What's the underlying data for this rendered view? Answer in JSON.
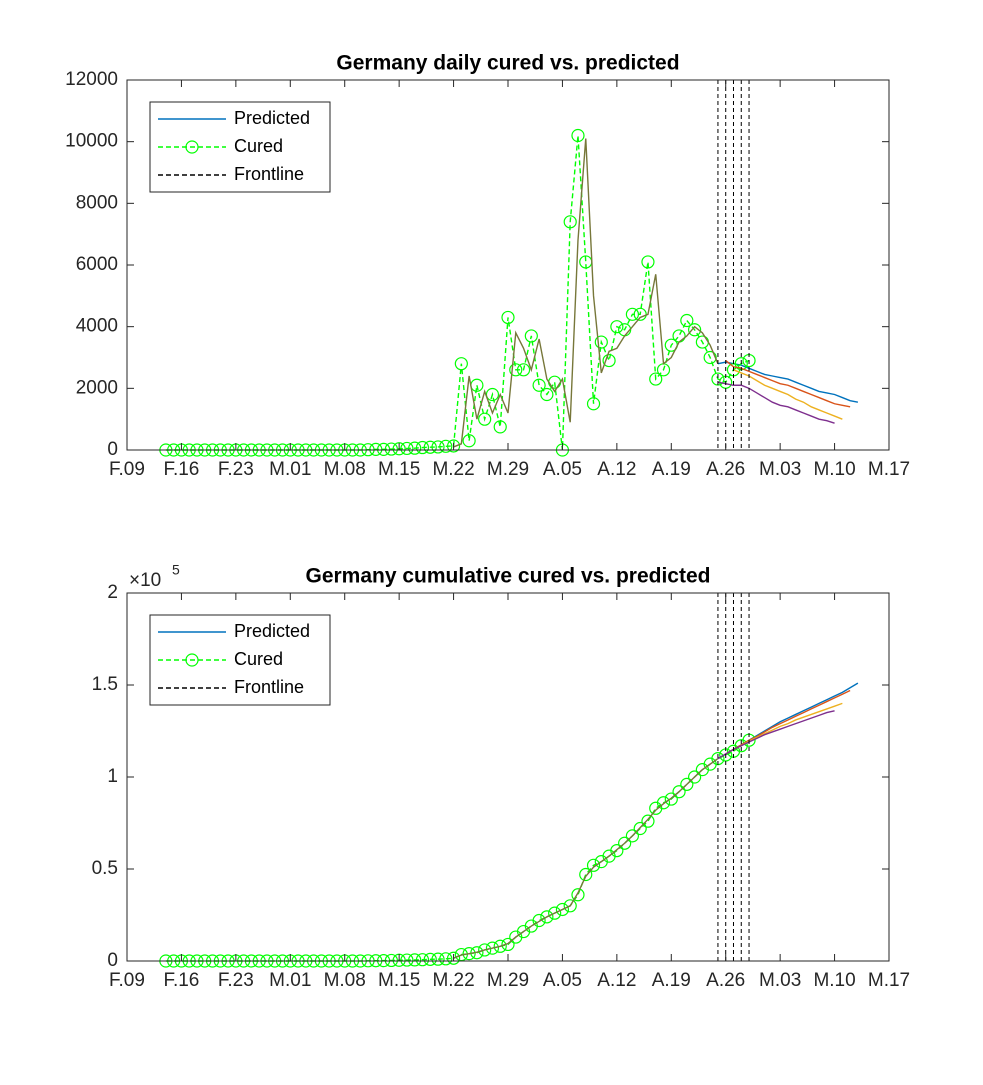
{
  "chart_data": [
    {
      "type": "line",
      "title": "Germany daily cured vs. predicted",
      "xlim": [
        0,
        98
      ],
      "xticks": [
        {
          "value": 0,
          "label": "F.09"
        },
        {
          "value": 7,
          "label": "F.16"
        },
        {
          "value": 14,
          "label": "F.23"
        },
        {
          "value": 21,
          "label": "M.01"
        },
        {
          "value": 28,
          "label": "M.08"
        },
        {
          "value": 35,
          "label": "M.15"
        },
        {
          "value": 42,
          "label": "M.22"
        },
        {
          "value": 49,
          "label": "M.29"
        },
        {
          "value": 56,
          "label": "A.05"
        },
        {
          "value": 63,
          "label": "A.12"
        },
        {
          "value": 70,
          "label": "A.19"
        },
        {
          "value": 77,
          "label": "A.26"
        },
        {
          "value": 84,
          "label": "M.03"
        },
        {
          "value": 91,
          "label": "M.10"
        },
        {
          "value": 98,
          "label": "M.17"
        }
      ],
      "ylim": [
        0,
        12000
      ],
      "yticks": [
        0,
        2000,
        4000,
        6000,
        8000,
        10000,
        12000
      ],
      "legend": "upper left",
      "series": [
        {
          "name": "Predicted",
          "color": "#0072bd",
          "linestyle": "solid",
          "x": [
            76,
            77,
            78,
            79,
            80,
            81,
            82,
            83,
            84,
            85,
            86,
            87,
            88,
            89,
            90,
            91,
            92,
            93,
            94
          ],
          "values": [
            2800,
            2850,
            2800,
            2750,
            2650,
            2550,
            2450,
            2400,
            2350,
            2300,
            2200,
            2100,
            2000,
            1900,
            1850,
            1800,
            1700,
            1600,
            1550
          ]
        },
        {
          "name": "Cured",
          "color": "#00ff00",
          "linestyle": "dashed",
          "marker": "circle",
          "x": [
            5,
            6,
            7,
            8,
            9,
            10,
            11,
            12,
            13,
            14,
            15,
            16,
            17,
            18,
            19,
            20,
            21,
            22,
            23,
            24,
            25,
            26,
            27,
            28,
            29,
            30,
            31,
            32,
            33,
            34,
            35,
            36,
            37,
            38,
            39,
            40,
            41,
            42,
            43,
            44,
            45,
            46,
            47,
            48,
            49,
            50,
            51,
            52,
            53,
            54,
            55,
            56,
            57,
            58,
            59,
            60,
            61,
            62,
            63,
            64,
            65,
            66,
            67,
            68,
            69,
            70,
            71,
            72,
            73,
            74,
            75,
            76,
            77,
            78,
            79,
            80
          ],
          "values": [
            0,
            0,
            0,
            0,
            0,
            0,
            0,
            0,
            0,
            0,
            0,
            0,
            0,
            0,
            0,
            0,
            0,
            0,
            0,
            0,
            0,
            0,
            0,
            0,
            0,
            0,
            10,
            20,
            20,
            30,
            40,
            50,
            60,
            80,
            90,
            100,
            120,
            130,
            2800,
            300,
            2100,
            1000,
            1800,
            750,
            4300,
            2600,
            2600,
            3700,
            2100,
            1800,
            2200,
            0,
            7400,
            10200,
            6100,
            1500,
            3500,
            2900,
            4000,
            3900,
            4400,
            4400,
            6100,
            2300,
            2600,
            3400,
            3700,
            4200,
            3900,
            3500,
            3000,
            2300,
            2200,
            2600,
            2800,
            2900
          ]
        },
        {
          "color": "#77773a",
          "linestyle": "solid",
          "x": [
            42,
            43,
            44,
            45,
            46,
            47,
            48,
            49,
            50,
            51,
            52,
            53,
            54,
            55,
            56,
            57,
            58,
            59,
            60,
            61,
            62,
            63,
            64,
            65,
            66,
            67,
            68,
            69,
            70,
            71,
            72,
            73,
            74,
            75,
            76
          ],
          "values": [
            100,
            200,
            2400,
            1000,
            1900,
            1200,
            1800,
            1200,
            3800,
            3300,
            2600,
            3600,
            2300,
            1900,
            2300,
            900,
            6800,
            10100,
            5000,
            2500,
            3200,
            3300,
            3700,
            4000,
            4300,
            4400,
            5700,
            2800,
            3000,
            3500,
            3700,
            4000,
            3800,
            3400,
            2800
          ]
        },
        {
          "color": "#d95319",
          "linestyle": "solid",
          "x": [
            77,
            78,
            79,
            80,
            81,
            82,
            83,
            84,
            85,
            86,
            87,
            88,
            89,
            90,
            91,
            92,
            93
          ],
          "values": [
            2900,
            2700,
            2650,
            2550,
            2450,
            2350,
            2250,
            2150,
            2100,
            2000,
            1900,
            1800,
            1700,
            1600,
            1500,
            1450,
            1400
          ]
        },
        {
          "color": "#edb120",
          "linestyle": "solid",
          "x": [
            78,
            79,
            80,
            81,
            82,
            83,
            84,
            85,
            86,
            87,
            88,
            89,
            90,
            91,
            92
          ],
          "values": [
            2600,
            2500,
            2400,
            2250,
            2100,
            2000,
            1900,
            1800,
            1650,
            1550,
            1400,
            1300,
            1200,
            1100,
            1000
          ]
        },
        {
          "color": "#7e2f8e",
          "linestyle": "solid",
          "x": [
            76,
            77,
            78,
            79,
            80,
            81,
            82,
            83,
            84,
            85,
            86,
            87,
            88,
            89,
            90,
            91
          ],
          "values": [
            2200,
            2150,
            2100,
            2100,
            2000,
            1850,
            1700,
            1550,
            1450,
            1400,
            1300,
            1200,
            1100,
            1000,
            950,
            870
          ]
        }
      ],
      "frontline": {
        "name": "Frontline",
        "color": "#000000",
        "linestyle": "dashed",
        "x": [
          76,
          77,
          78,
          79,
          80
        ]
      }
    },
    {
      "type": "line",
      "title": "Germany cumulative cured vs. predicted",
      "xlim": [
        0,
        98
      ],
      "xticks": [
        {
          "value": 0,
          "label": "F.09"
        },
        {
          "value": 7,
          "label": "F.16"
        },
        {
          "value": 14,
          "label": "F.23"
        },
        {
          "value": 21,
          "label": "M.01"
        },
        {
          "value": 28,
          "label": "M.08"
        },
        {
          "value": 35,
          "label": "M.15"
        },
        {
          "value": 42,
          "label": "M.22"
        },
        {
          "value": 49,
          "label": "M.29"
        },
        {
          "value": 56,
          "label": "A.05"
        },
        {
          "value": 63,
          "label": "A.12"
        },
        {
          "value": 70,
          "label": "A.19"
        },
        {
          "value": 77,
          "label": "A.26"
        },
        {
          "value": 84,
          "label": "M.03"
        },
        {
          "value": 91,
          "label": "M.10"
        },
        {
          "value": 98,
          "label": "M.17"
        }
      ],
      "ylim": [
        0,
        200000
      ],
      "yticks": [
        0,
        {
          "value": 50000,
          "label": "0.5"
        },
        {
          "value": 100000,
          "label": "1"
        },
        {
          "value": 150000,
          "label": "1.5"
        },
        {
          "value": 200000,
          "label": "2"
        }
      ],
      "yexponent": {
        "base": "×10",
        "power": "5"
      },
      "legend": "upper left",
      "series": [
        {
          "name": "Predicted",
          "color": "#0072bd",
          "linestyle": "solid",
          "x": [
            76,
            77,
            78,
            79,
            80,
            81,
            82,
            83,
            84,
            85,
            86,
            87,
            88,
            89,
            90,
            91,
            92,
            93,
            94
          ],
          "values": [
            110000,
            112500,
            115000,
            117500,
            120000,
            122500,
            125000,
            127500,
            130000,
            132000,
            134000,
            136000,
            138000,
            140000,
            142000,
            144000,
            146000,
            148500,
            151000
          ]
        },
        {
          "name": "Cured",
          "color": "#00ff00",
          "linestyle": "dashed",
          "marker": "circle",
          "x": [
            5,
            6,
            7,
            8,
            9,
            10,
            11,
            12,
            13,
            14,
            15,
            16,
            17,
            18,
            19,
            20,
            21,
            22,
            23,
            24,
            25,
            26,
            27,
            28,
            29,
            30,
            31,
            32,
            33,
            34,
            35,
            36,
            37,
            38,
            39,
            40,
            41,
            42,
            43,
            44,
            45,
            46,
            47,
            48,
            49,
            50,
            51,
            52,
            53,
            54,
            55,
            56,
            57,
            58,
            59,
            60,
            61,
            62,
            63,
            64,
            65,
            66,
            67,
            68,
            69,
            70,
            71,
            72,
            73,
            74,
            75,
            76,
            77,
            78,
            79,
            80
          ],
          "values": [
            0,
            0,
            0,
            0,
            0,
            0,
            0,
            0,
            0,
            0,
            0,
            0,
            0,
            0,
            0,
            0,
            0,
            0,
            0,
            0,
            0,
            0,
            0,
            0,
            0,
            0,
            100,
            150,
            200,
            300,
            400,
            500,
            600,
            700,
            900,
            1000,
            1200,
            1500,
            3500,
            4000,
            4500,
            6000,
            7000,
            8000,
            9000,
            13000,
            16000,
            19000,
            22000,
            24000,
            26000,
            28000,
            30000,
            36000,
            47000,
            52000,
            54000,
            57000,
            60000,
            64000,
            68000,
            72000,
            76000,
            83000,
            86000,
            88000,
            92000,
            96000,
            100000,
            104000,
            107000,
            110000,
            112000,
            114000,
            117000,
            120000
          ]
        },
        {
          "color": "#77773a",
          "linestyle": "solid",
          "x": [
            42,
            43,
            44,
            45,
            46,
            47,
            48,
            49,
            50,
            51,
            52,
            53,
            54,
            55,
            56,
            57,
            58,
            59,
            60,
            61,
            62,
            63,
            64,
            65,
            66,
            67,
            68,
            69,
            70,
            71,
            72,
            73,
            74,
            75,
            76
          ],
          "values": [
            1500,
            3200,
            4000,
            4800,
            6000,
            7000,
            8000,
            9500,
            13000,
            16000,
            19000,
            21500,
            24000,
            26000,
            28000,
            30000,
            37000,
            46000,
            51000,
            54000,
            57000,
            60500,
            64000,
            68000,
            72500,
            77000,
            82000,
            85500,
            88500,
            92000,
            96000,
            100000,
            104000,
            107000,
            110000
          ]
        },
        {
          "color": "#d95319",
          "linestyle": "solid",
          "x": [
            77,
            78,
            79,
            80,
            81,
            82,
            83,
            84,
            85,
            86,
            87,
            88,
            89,
            90,
            91,
            92,
            93
          ],
          "values": [
            112500,
            115000,
            117500,
            120000,
            122000,
            124500,
            127000,
            129000,
            131000,
            133000,
            135000,
            137000,
            139000,
            141000,
            143000,
            145000,
            147000
          ]
        },
        {
          "color": "#edb120",
          "linestyle": "solid",
          "x": [
            78,
            79,
            80,
            81,
            82,
            83,
            84,
            85,
            86,
            87,
            88,
            89,
            90,
            91,
            92
          ],
          "values": [
            115000,
            117000,
            119500,
            121500,
            123500,
            125500,
            127500,
            129000,
            131000,
            132500,
            134000,
            135500,
            137000,
            138500,
            140000
          ]
        },
        {
          "color": "#7e2f8e",
          "linestyle": "solid",
          "x": [
            76,
            77,
            78,
            79,
            80,
            81,
            82,
            83,
            84,
            85,
            86,
            87,
            88,
            89,
            90,
            91
          ],
          "values": [
            110000,
            112500,
            115000,
            117000,
            119000,
            121000,
            123000,
            124500,
            126000,
            127500,
            129000,
            130500,
            132000,
            133500,
            135000,
            136000
          ]
        }
      ],
      "frontline": {
        "name": "Frontline",
        "color": "#000000",
        "linestyle": "dashed",
        "x": [
          76,
          77,
          78,
          79,
          80
        ]
      }
    }
  ]
}
